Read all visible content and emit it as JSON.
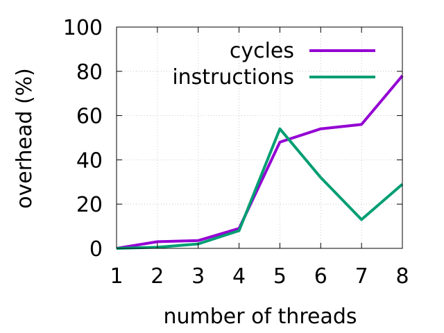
{
  "chart_data": {
    "type": "line",
    "xlabel": "number of threads",
    "ylabel": "overhead (%)",
    "x": [
      1,
      2,
      3,
      4,
      5,
      6,
      7,
      8
    ],
    "xlim": [
      1,
      8
    ],
    "ylim": [
      0,
      100
    ],
    "xticks": [
      "1",
      "2",
      "3",
      "4",
      "5",
      "6",
      "7",
      "8"
    ],
    "yticks": [
      "0",
      "20",
      "40",
      "60",
      "80",
      "100"
    ],
    "grid": true,
    "legend_position": "top-right",
    "series": [
      {
        "name": "cycles",
        "color": "#9400d3",
        "values": [
          0,
          3,
          3.5,
          9,
          48,
          54,
          56,
          78
        ]
      },
      {
        "name": "instructions",
        "color": "#009e73",
        "values": [
          0,
          0.5,
          2,
          8,
          54,
          32,
          13,
          29
        ]
      }
    ]
  }
}
